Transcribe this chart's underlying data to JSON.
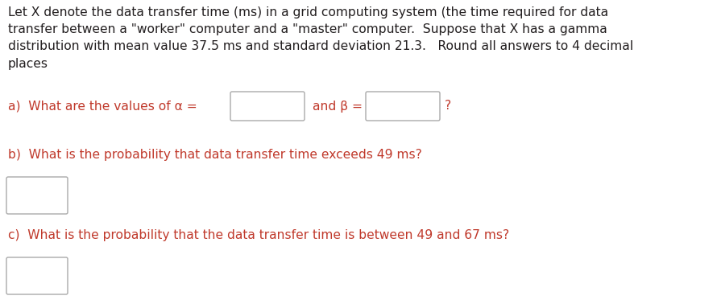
{
  "bg_color": "#ffffff",
  "text_color_black": "#231f20",
  "text_color_red": "#c0392b",
  "paragraph_text": "Let X denote the data transfer time (ms) in a grid computing system (the time required for data\ntransfer between a \"worker\" computer and a \"master\" computer.  Suppose that X has a gamma\ndistribution with mean value 37.5 ms and standard deviation 21.3.   Round all answers to 4 decimal\nplaces",
  "part_a_label": "a)  What are the values of α =",
  "part_a_mid": "and β =",
  "part_a_end": "?",
  "part_b_label": "b)  What is the probability that data transfer time exceeds 49 ms?",
  "part_c_label": "c)  What is the probability that the data transfer time is between 49 and 67 ms?",
  "font_size": 11.2,
  "box_color": "#ffffff",
  "box_edge_color": "#aaaaaa"
}
